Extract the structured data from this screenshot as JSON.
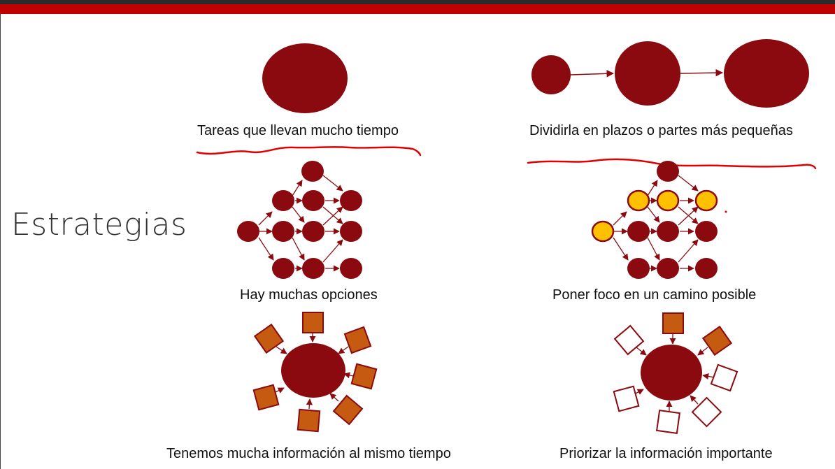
{
  "slide": {
    "title": "Estrategias"
  },
  "captions": {
    "c1": "Tareas que llevan mucho tiempo",
    "c2": "Dividirla en plazos o partes más pequeñas",
    "c3": "Hay muchas opciones",
    "c4": "Poner foco en un camino posible",
    "c5": "Tenemos mucha información al mismo tiempo",
    "c6": "Priorizar la información importante"
  },
  "colors": {
    "accent_red": "#c00000",
    "node_dark_red": "#8b0a10",
    "highlight_yellow": "#ffc000",
    "square_orange": "#c55a11",
    "annotation_red": "#e00000"
  }
}
